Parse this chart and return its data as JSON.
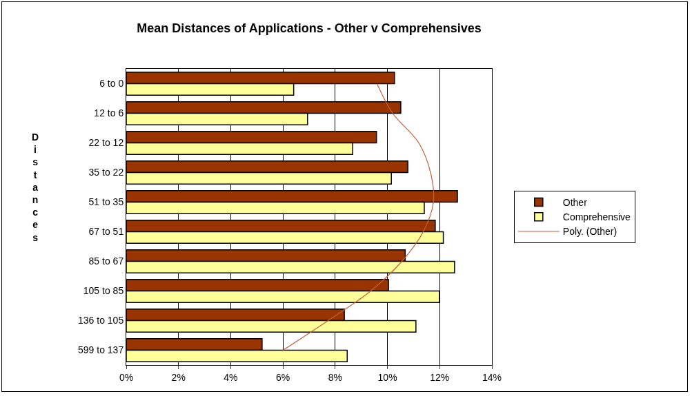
{
  "chart_data": {
    "type": "bar",
    "orientation": "horizontal",
    "title": "Mean Distances of Applications - Other v Comprehensives",
    "ylabel": "Distances",
    "categories": [
      "6 to 0",
      "12 to 6",
      "22 to 12",
      "35 to 22",
      "51 to 35",
      "67 to 51",
      "85 to 67",
      "105 to 85",
      "136 to 105",
      "599 to 137"
    ],
    "series": [
      {
        "name": "Other",
        "color": "#993300",
        "values": [
          10.27,
          10.51,
          9.58,
          10.78,
          12.68,
          11.83,
          10.68,
          10.04,
          8.35,
          5.2
        ]
      },
      {
        "name": "Comprehensive",
        "color": "#ffff99",
        "values": [
          6.41,
          6.94,
          8.67,
          10.15,
          11.41,
          12.14,
          12.57,
          11.99,
          11.09,
          8.46
        ]
      },
      {
        "name": "Poly. (Other)",
        "type": "line",
        "color": "#c0603a",
        "values": [
          9.6,
          10.2,
          11.2,
          11.65,
          11.76,
          11.37,
          10.55,
          9.36,
          7.73,
          6.0
        ]
      }
    ],
    "xlim": [
      0,
      14
    ],
    "xticks": [
      {
        "value": 0,
        "label": "0%"
      },
      {
        "value": 2,
        "label": "2%"
      },
      {
        "value": 4,
        "label": "4%"
      },
      {
        "value": 6,
        "label": "6%"
      },
      {
        "value": 8,
        "label": "8%"
      },
      {
        "value": 10,
        "label": "10%"
      },
      {
        "value": 12,
        "label": "12%"
      },
      {
        "value": 14,
        "label": "14%"
      }
    ],
    "grid": "x",
    "legend": "right"
  }
}
